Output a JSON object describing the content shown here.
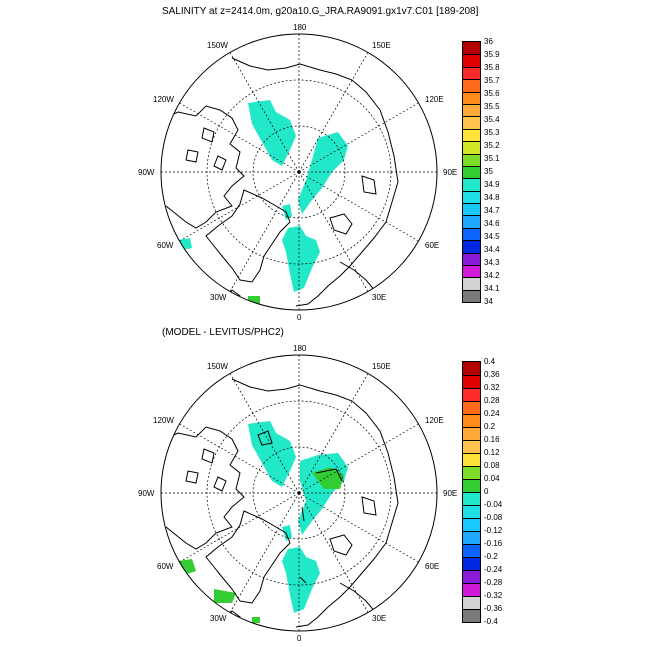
{
  "map1": {
    "title": "SALINITY at z=2414.0m, g20a10.G_JRA.RA9091.gx1v7.C01 [189-208]",
    "colorbar": {
      "labels": [
        "36",
        "35.9",
        "35.8",
        "35.7",
        "35.6",
        "35.5",
        "35.4",
        "35.3",
        "35.2",
        "35.1",
        "35",
        "34.9",
        "34.8",
        "34.7",
        "34.6",
        "34.5",
        "34.4",
        "34.3",
        "34.2",
        "34.1",
        "34"
      ],
      "colors": [
        "#b40000",
        "#e00000",
        "#ff2a2a",
        "#ff6a1a",
        "#ff8c1a",
        "#ffa83a",
        "#ffc24d",
        "#ffe23a",
        "#d2e628",
        "#7ddc28",
        "#33cc33",
        "#20e8c8",
        "#20e0e6",
        "#18c8ff",
        "#20a8ff",
        "#0a64ff",
        "#0028e0",
        "#8a1ad8",
        "#d01ad8",
        "#d2d2d2",
        "#7a7a7a"
      ]
    },
    "longitude_labels": [
      "180",
      "150E",
      "120E",
      "90E",
      "60E",
      "30E",
      "0",
      "30W",
      "60W",
      "90W",
      "120W",
      "150W"
    ]
  },
  "map2": {
    "title": "(MODEL - LEVITUS/PHC2)",
    "colorbar": {
      "labels": [
        "0.4",
        "0.36",
        "0.32",
        "0.28",
        "0.24",
        "0.2",
        "0.16",
        "0.12",
        "0.08",
        "0.04",
        "0",
        "-0.04",
        "-0.08",
        "-0.12",
        "-0.16",
        "-0.2",
        "-0.24",
        "-0.28",
        "-0.32",
        "-0.36",
        "-0.4"
      ],
      "colors": [
        "#b40000",
        "#e00000",
        "#ff2a2a",
        "#ff6a1a",
        "#ff8c1a",
        "#ffa83a",
        "#ffc24d",
        "#ffe23a",
        "#7ddc28",
        "#33cc33",
        "#20e8c8",
        "#20e0e6",
        "#18c8ff",
        "#20a8ff",
        "#0a64ff",
        "#0028e0",
        "#8a1ad8",
        "#d01ad8",
        "#d2d2d2",
        "#7a7a7a"
      ]
    },
    "longitude_labels": [
      "180",
      "150E",
      "120E",
      "90E",
      "60E",
      "30E",
      "0",
      "30W",
      "60W",
      "90W",
      "120W",
      "150W"
    ]
  }
}
